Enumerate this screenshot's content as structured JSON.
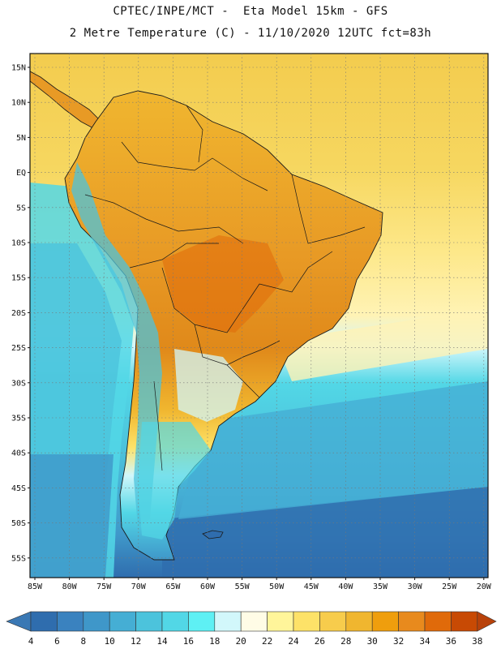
{
  "title_line1": "CPTEC/INPE/MCT -  Eta Model 15km - GFS",
  "title_line2": "2 Metre Temperature (C) - 11/10/2020 12UTC fct=83h",
  "map": {
    "lat_labels": [
      "15N",
      "10N",
      "5N",
      "EQ",
      "5S",
      "10S",
      "15S",
      "20S",
      "25S",
      "30S",
      "35S",
      "40S",
      "45S",
      "50S",
      "55S"
    ],
    "lon_labels": [
      "85W",
      "80W",
      "75W",
      "70W",
      "65W",
      "60W",
      "55W",
      "50W",
      "45W",
      "40W",
      "35W",
      "30W",
      "25W",
      "20W"
    ]
  },
  "colorbar": {
    "labels": [
      "4",
      "6",
      "8",
      "10",
      "12",
      "14",
      "16",
      "18",
      "20",
      "22",
      "24",
      "26",
      "28",
      "30",
      "32",
      "34",
      "36",
      "38"
    ],
    "below_color": "#3a78b4",
    "above_color": "#b8420a",
    "colors": [
      "#2f6dae",
      "#3a82bf",
      "#3f97c9",
      "#45aed4",
      "#4cc3dc",
      "#52d7e6",
      "#5ef0f4",
      "#d2f7fb",
      "#fffce6",
      "#fff59a",
      "#fde268",
      "#f7cc4c",
      "#f0b62f",
      "#ef9e0d",
      "#e88a1d",
      "#e06a0a",
      "#c84a04"
    ]
  },
  "colors": {
    "ocean_north": "#f3cc4e",
    "ocean_mid": "#fff09a",
    "ocean_south": "#4fc3da",
    "ocean_deep": "#2f6dae",
    "land_hot": "#e89a25",
    "land_warm": "#f0b62f",
    "andes": "#4cc3dc",
    "coast_line": "#1a1a1a"
  }
}
